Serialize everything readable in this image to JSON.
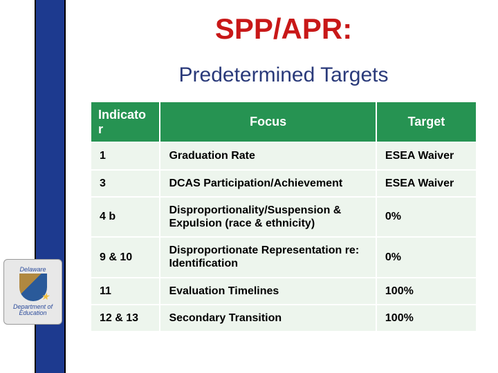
{
  "title": "SPP/APR:",
  "subtitle": "Predetermined Targets",
  "sidebar": {
    "band_color": "#1d3a8f",
    "logo_top": "Delaware",
    "logo_bottom": "Department of Education"
  },
  "table": {
    "header_bg": "#269352",
    "header_fg": "#ffffff",
    "row_bg": "#edf5ed",
    "columns": [
      "Indicator",
      "Focus",
      "Target"
    ],
    "rows": [
      {
        "indicator": "1",
        "focus": "Graduation Rate",
        "target": "ESEA Waiver"
      },
      {
        "indicator": "3",
        "focus": "DCAS Participation/Achievement",
        "target": "ESEA Waiver"
      },
      {
        "indicator": "4 b",
        "focus": "Disproportionality/Suspension & Expulsion (race & ethnicity)",
        "target": "0%"
      },
      {
        "indicator": "9 & 10",
        "focus": "Disproportionate Representation re: Identification",
        "target": "0%"
      },
      {
        "indicator": "11",
        "focus": "Evaluation Timelines",
        "target": "100%"
      },
      {
        "indicator": "12 & 13",
        "focus": "Secondary Transition",
        "target": "100%"
      }
    ]
  }
}
